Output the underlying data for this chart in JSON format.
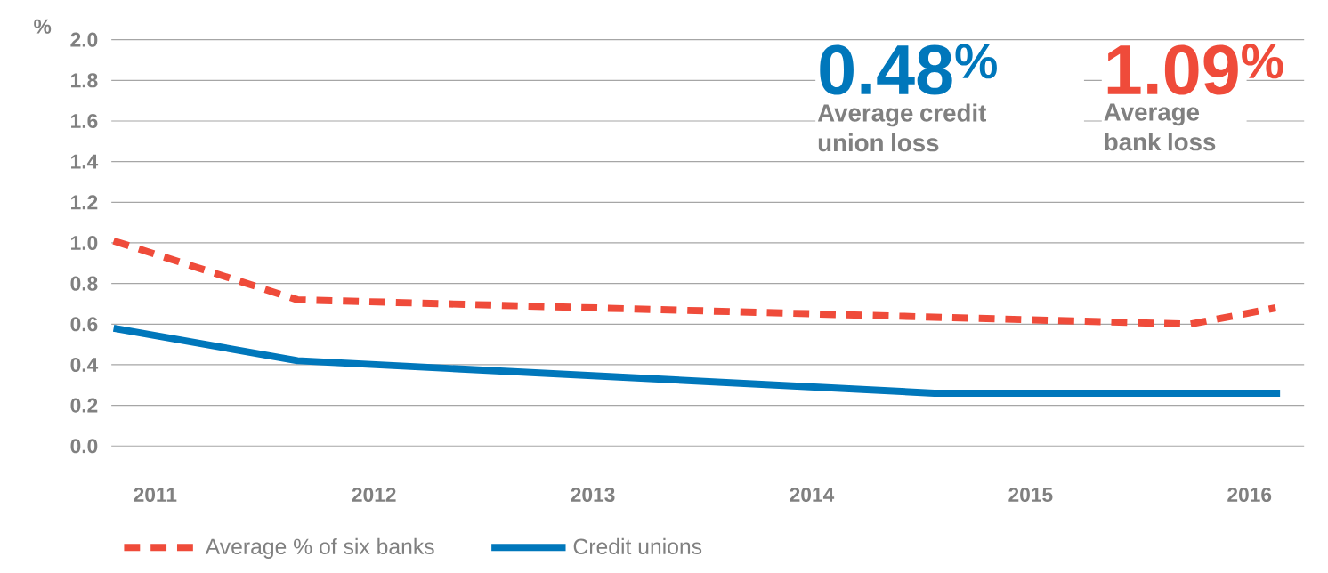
{
  "chart_data": {
    "type": "line",
    "ylabel": "%",
    "xlim": [
      2010.8,
      2016.25
    ],
    "xticks": [
      2011,
      2012,
      2013,
      2014,
      2015,
      2016
    ],
    "ylim": [
      0,
      2.0
    ],
    "yticks": [
      {
        "value": 0,
        "label": "0.0"
      },
      0.2,
      0.4,
      0.6,
      0.8,
      {
        "value": 1,
        "label": "1.0"
      },
      1.2,
      1.4,
      1.6,
      1.8,
      {
        "value": 2,
        "label": "2.0"
      }
    ],
    "grid": "y",
    "legend": "bottom",
    "series": [
      {
        "name": "Average % of six banks",
        "color": "#ef4b3a",
        "line_style": "dashed",
        "x": [
          2010.81,
          2011.65,
          2015.73,
          2016.12
        ],
        "values": [
          1.01,
          0.72,
          0.6,
          0.68
        ]
      },
      {
        "name": "Credit unions",
        "color": "#0077bb",
        "line_style": "solid",
        "x": [
          2010.81,
          2011.65,
          2014.56,
          2016.14
        ],
        "values": [
          0.58,
          0.42,
          0.26,
          0.26
        ]
      }
    ],
    "annotations": [
      "0.48$^{%}$",
      "Average credit union loss",
      "1.09$^{%}$",
      "Average bank loss"
    ]
  }
}
